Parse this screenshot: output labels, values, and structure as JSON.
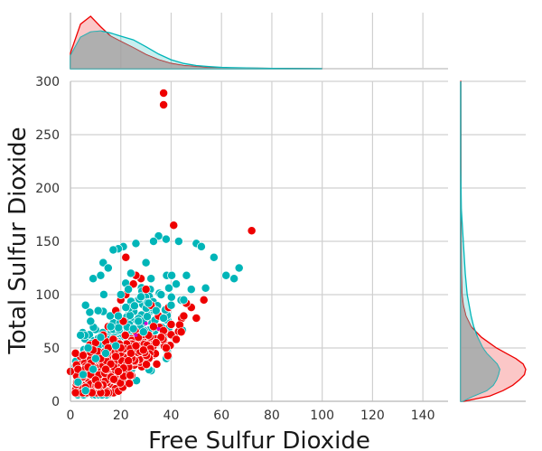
{
  "chart_data": {
    "type": "scatter",
    "kind": "jointplot",
    "xlabel": "Free Sulfur Dioxide",
    "ylabel": "Total Sulfur Dioxide",
    "xlim": [
      0,
      150
    ],
    "ylim": [
      0,
      300
    ],
    "xticks": [
      "0",
      "20",
      "40",
      "60",
      "80",
      "100",
      "120",
      "140"
    ],
    "yticks": [
      "0",
      "50",
      "100",
      "150",
      "200",
      "250",
      "300"
    ],
    "grid": true,
    "colors": {
      "red_series": "#ee0000",
      "cyan_series": "#00b5b8",
      "overlap": "#a8a8a8",
      "minor": "#cc00cc"
    },
    "series": [
      {
        "color": "#ee0000",
        "points": [
          [
            37,
            289
          ],
          [
            37,
            278
          ],
          [
            41,
            165
          ],
          [
            72,
            160
          ],
          [
            53,
            95
          ],
          [
            48,
            88
          ],
          [
            45,
            80
          ],
          [
            50,
            78
          ],
          [
            2,
            45
          ],
          [
            5,
            43
          ],
          [
            0,
            28
          ],
          [
            8,
            25
          ],
          [
            6,
            13
          ],
          [
            10,
            55
          ],
          [
            15,
            70
          ],
          [
            18,
            85
          ],
          [
            22,
            100
          ],
          [
            25,
            110
          ],
          [
            28,
            115
          ],
          [
            30,
            105
          ],
          [
            32,
            90
          ],
          [
            35,
            80
          ],
          [
            33,
            70
          ],
          [
            27,
            60
          ],
          [
            20,
            50
          ],
          [
            12,
            40
          ],
          [
            16,
            35
          ],
          [
            24,
            45
          ],
          [
            36,
            60
          ],
          [
            40,
            72
          ],
          [
            44,
            65
          ],
          [
            10,
            20
          ],
          [
            14,
            30
          ],
          [
            19,
            28
          ],
          [
            23,
            38
          ],
          [
            26,
            52
          ],
          [
            29,
            48
          ],
          [
            31,
            62
          ],
          [
            34,
            55
          ],
          [
            38,
            50
          ],
          [
            42,
            58
          ],
          [
            7,
            32
          ],
          [
            9,
            48
          ],
          [
            13,
            62
          ],
          [
            17,
            58
          ],
          [
            21,
            75
          ],
          [
            3,
            30
          ],
          [
            11,
            15
          ],
          [
            39,
            88
          ],
          [
            46,
            92
          ],
          [
            26,
            118
          ],
          [
            22,
            135
          ],
          [
            20,
            95
          ],
          [
            18,
            42
          ],
          [
            15,
            50
          ]
        ]
      },
      {
        "color": "#00b5b8",
        "points": [
          [
            67,
            125
          ],
          [
            65,
            115
          ],
          [
            57,
            135
          ],
          [
            50,
            148
          ],
          [
            52,
            145
          ],
          [
            43,
            150
          ],
          [
            38,
            152
          ],
          [
            35,
            155
          ],
          [
            33,
            150
          ],
          [
            26,
            148
          ],
          [
            21,
            145
          ],
          [
            19,
            143
          ],
          [
            17,
            142
          ],
          [
            13,
            130
          ],
          [
            9,
            115
          ],
          [
            6,
            90
          ],
          [
            8,
            75
          ],
          [
            4,
            62
          ],
          [
            3,
            18
          ],
          [
            6,
            10
          ],
          [
            12,
            118
          ],
          [
            15,
            125
          ],
          [
            24,
            120
          ],
          [
            30,
            130
          ],
          [
            32,
            115
          ],
          [
            36,
            100
          ],
          [
            42,
            110
          ],
          [
            48,
            105
          ],
          [
            45,
            95
          ],
          [
            40,
            90
          ],
          [
            28,
            98
          ],
          [
            22,
            88
          ],
          [
            19,
            80
          ],
          [
            16,
            70
          ],
          [
            12,
            60
          ],
          [
            10,
            40
          ],
          [
            14,
            45
          ],
          [
            18,
            52
          ],
          [
            25,
            68
          ],
          [
            34,
            85
          ],
          [
            27,
            75
          ],
          [
            9,
            30
          ],
          [
            5,
            25
          ],
          [
            23,
            105
          ],
          [
            31,
            92
          ],
          [
            37,
            78
          ],
          [
            29,
            65
          ],
          [
            20,
            100
          ],
          [
            11,
            85
          ],
          [
            7,
            50
          ]
        ]
      }
    ],
    "marginal_top": {
      "x": [
        0,
        4,
        8,
        12,
        16,
        20,
        25,
        30,
        35,
        40,
        45,
        50,
        55,
        60,
        70,
        80,
        100
      ],
      "red": [
        0.3,
        0.85,
        1.0,
        0.8,
        0.62,
        0.52,
        0.4,
        0.27,
        0.17,
        0.1,
        0.06,
        0.04,
        0.02,
        0.015,
        0.01,
        0.006,
        0
      ],
      "cyan": [
        0.25,
        0.6,
        0.7,
        0.72,
        0.68,
        0.62,
        0.55,
        0.42,
        0.28,
        0.17,
        0.1,
        0.06,
        0.04,
        0.025,
        0.015,
        0.005,
        0
      ]
    },
    "marginal_right": {
      "y": [
        0,
        5,
        10,
        15,
        20,
        25,
        30,
        35,
        40,
        45,
        50,
        60,
        70,
        80,
        90,
        100,
        120,
        150,
        180,
        220,
        260,
        300
      ],
      "red": [
        0.05,
        0.45,
        0.65,
        0.8,
        0.9,
        0.98,
        1.0,
        0.96,
        0.85,
        0.7,
        0.55,
        0.32,
        0.16,
        0.08,
        0.04,
        0.02,
        0.01,
        0.006,
        0.004,
        0.003,
        0.002,
        0.001
      ],
      "cyan": [
        0.03,
        0.2,
        0.4,
        0.5,
        0.55,
        0.58,
        0.6,
        0.56,
        0.48,
        0.4,
        0.34,
        0.26,
        0.2,
        0.16,
        0.13,
        0.1,
        0.07,
        0.04,
        0.01,
        0,
        0,
        0
      ]
    }
  }
}
